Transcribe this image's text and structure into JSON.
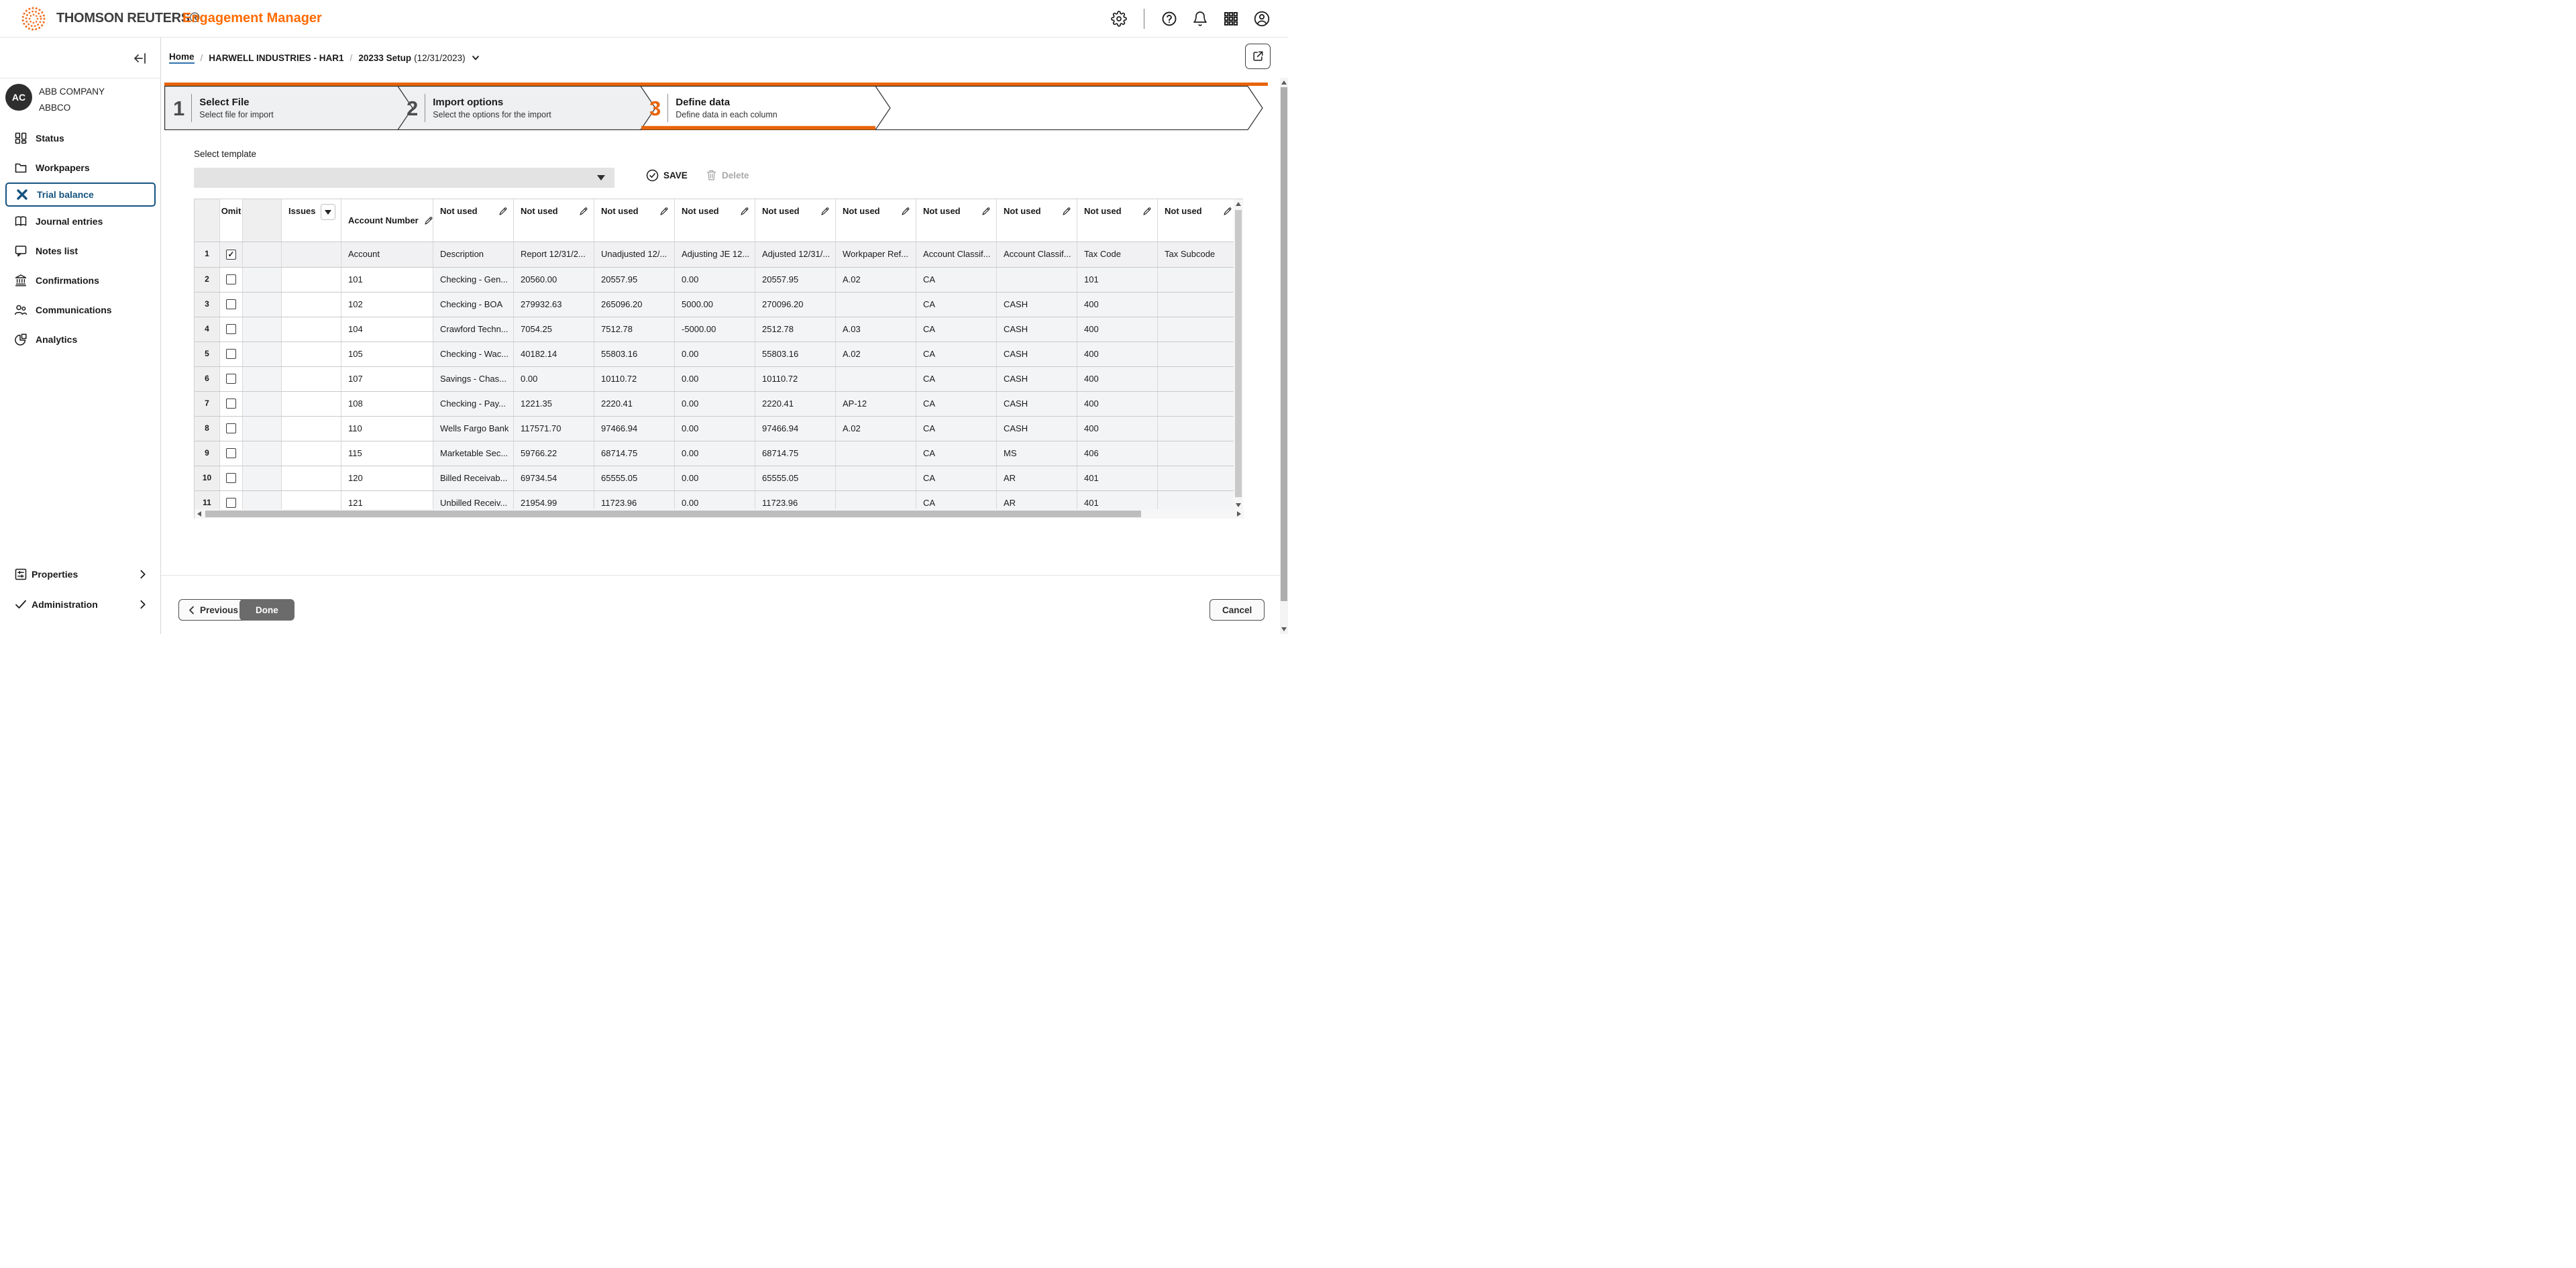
{
  "colors": {
    "accent_orange": "#e8650a",
    "brand_orange": "#ff6b00",
    "selected_blue": "#15537f",
    "step_gray": "#eef0f2"
  },
  "header": {
    "brand": "THOMSON REUTERS®",
    "product": "Engagement Manager",
    "icons": [
      "settings-gear",
      "help-circle",
      "notifications-bell",
      "app-launcher-grid",
      "account-person"
    ]
  },
  "toolbar": {
    "breadcrumb": {
      "home": "Home",
      "separator": "/",
      "client": "HARWELL INDUSTRIES - HAR1",
      "engagement": "20233 Setup",
      "engagement_date": "(12/31/2023)"
    }
  },
  "sidebar": {
    "client": {
      "initials": "AC",
      "name": "ABB COMPANY",
      "code": "ABBCO"
    },
    "items": [
      {
        "label": "Status",
        "icon": "status",
        "active": false
      },
      {
        "label": "Workpapers",
        "icon": "folder",
        "active": false
      },
      {
        "label": "Trial balance",
        "icon": "trial",
        "active": true
      },
      {
        "label": "Journal entries",
        "icon": "book",
        "active": false
      },
      {
        "label": "Notes list",
        "icon": "note",
        "active": false
      },
      {
        "label": "Confirmations",
        "icon": "bank",
        "active": false
      },
      {
        "label": "Communications",
        "icon": "people",
        "active": false
      },
      {
        "label": "Analytics",
        "icon": "pie",
        "active": false
      }
    ],
    "footer_items": [
      {
        "label": "Properties",
        "icon": "sliders"
      },
      {
        "label": "Administration",
        "icon": "check"
      }
    ]
  },
  "wizard": {
    "steps": [
      {
        "num": "1",
        "title": "Select File",
        "subtitle": "Select file for import",
        "state": "done"
      },
      {
        "num": "2",
        "title": "Import options",
        "subtitle": "Select the options for the import",
        "state": "done"
      },
      {
        "num": "3",
        "title": "Define data",
        "subtitle": "Define data in each column",
        "state": "active"
      }
    ]
  },
  "template_bar": {
    "label": "Select template",
    "dropdown_value": "",
    "save_label": "SAVE",
    "delete_label": "Delete"
  },
  "table": {
    "headers": {
      "omit": "Omit",
      "issues": "Issues",
      "account_number": "Account Number"
    },
    "not_used_labels": [
      "Not used",
      "Not used",
      "Not used",
      "Not used",
      "Not used",
      "Not used",
      "Not used",
      "Not used",
      "Not used",
      "Not used"
    ],
    "mapping_row": {
      "num": "1",
      "omit_checked": true,
      "values": [
        "Account",
        "Description",
        "Report 12/31/2...",
        "Unadjusted 12/...",
        "Adjusting JE 12...",
        "Adjusted 12/31/...",
        "Workpaper Ref...",
        "Account Classif...",
        "Account Classif...",
        "Tax Code",
        "Tax Subcode"
      ]
    },
    "rows": [
      {
        "num": "2",
        "omit_checked": false,
        "values": [
          "101",
          "Checking - Gen...",
          "20560.00",
          "20557.95",
          "0.00",
          "20557.95",
          "A.02",
          "CA",
          "",
          "101",
          ""
        ]
      },
      {
        "num": "3",
        "omit_checked": false,
        "values": [
          "102",
          "Checking - BOA",
          "279932.63",
          "265096.20",
          "5000.00",
          "270096.20",
          "",
          "CA",
          "CASH",
          "400",
          ""
        ]
      },
      {
        "num": "4",
        "omit_checked": false,
        "values": [
          "104",
          "Crawford Techn...",
          "7054.25",
          "7512.78",
          "-5000.00",
          "2512.78",
          "A.03",
          "CA",
          "CASH",
          "400",
          ""
        ]
      },
      {
        "num": "5",
        "omit_checked": false,
        "values": [
          "105",
          "Checking - Wac...",
          "40182.14",
          "55803.16",
          "0.00",
          "55803.16",
          "A.02",
          "CA",
          "CASH",
          "400",
          ""
        ]
      },
      {
        "num": "6",
        "omit_checked": false,
        "values": [
          "107",
          "Savings - Chas...",
          "0.00",
          "10110.72",
          "0.00",
          "10110.72",
          "",
          "CA",
          "CASH",
          "400",
          ""
        ]
      },
      {
        "num": "7",
        "omit_checked": false,
        "values": [
          "108",
          "Checking - Pay...",
          "1221.35",
          "2220.41",
          "0.00",
          "2220.41",
          "AP-12",
          "CA",
          "CASH",
          "400",
          ""
        ]
      },
      {
        "num": "8",
        "omit_checked": false,
        "values": [
          "110",
          "Wells Fargo Bank",
          "117571.70",
          "97466.94",
          "0.00",
          "97466.94",
          "A.02",
          "CA",
          "CASH",
          "400",
          ""
        ]
      },
      {
        "num": "9",
        "omit_checked": false,
        "values": [
          "115",
          "Marketable Sec...",
          "59766.22",
          "68714.75",
          "0.00",
          "68714.75",
          "",
          "CA",
          "MS",
          "406",
          ""
        ]
      },
      {
        "num": "10",
        "omit_checked": false,
        "values": [
          "120",
          "Billed Receivab...",
          "69734.54",
          "65555.05",
          "0.00",
          "65555.05",
          "",
          "CA",
          "AR",
          "401",
          ""
        ]
      },
      {
        "num": "11",
        "omit_checked": false,
        "values": [
          "121",
          "Unbilled Receiv...",
          "21954.99",
          "11723.96",
          "0.00",
          "11723.96",
          "",
          "CA",
          "AR",
          "401",
          ""
        ]
      }
    ]
  },
  "footer": {
    "previous": "Previous",
    "done": "Done",
    "cancel": "Cancel"
  }
}
